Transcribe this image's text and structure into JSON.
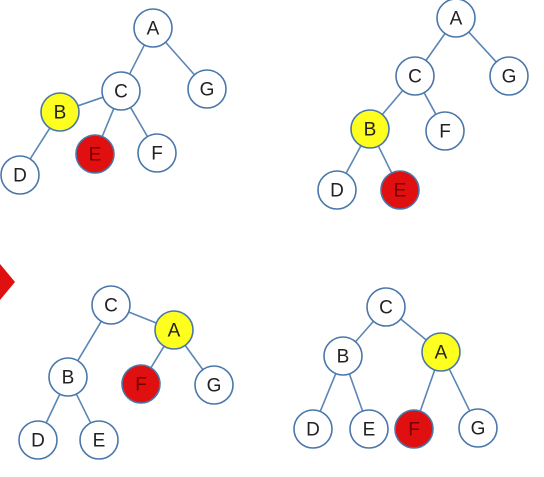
{
  "colors": {
    "default_fill": "#ffffff",
    "yellow_fill": "#ffff1f",
    "red_fill": "#e01010",
    "default_text": "#222222",
    "red_text": "#7a0000",
    "edge": "#5b86b5",
    "arrow": "#e01010"
  },
  "trees": [
    {
      "nodes": [
        {
          "id": "A",
          "label": "A",
          "highlight": "none"
        },
        {
          "id": "C",
          "label": "C",
          "highlight": "none"
        },
        {
          "id": "G",
          "label": "G",
          "highlight": "none"
        },
        {
          "id": "B",
          "label": "B",
          "highlight": "yellow"
        },
        {
          "id": "E",
          "label": "E",
          "highlight": "red"
        },
        {
          "id": "F",
          "label": "F",
          "highlight": "none"
        },
        {
          "id": "D",
          "label": "D",
          "highlight": "none"
        }
      ],
      "edges": [
        [
          "A",
          "C"
        ],
        [
          "A",
          "G"
        ],
        [
          "C",
          "B"
        ],
        [
          "C",
          "E"
        ],
        [
          "C",
          "F"
        ],
        [
          "B",
          "D"
        ]
      ]
    },
    {
      "nodes": [
        {
          "id": "A",
          "label": "A",
          "highlight": "none"
        },
        {
          "id": "C",
          "label": "C",
          "highlight": "none"
        },
        {
          "id": "G",
          "label": "G",
          "highlight": "none"
        },
        {
          "id": "B",
          "label": "B",
          "highlight": "yellow"
        },
        {
          "id": "F",
          "label": "F",
          "highlight": "none"
        },
        {
          "id": "D",
          "label": "D",
          "highlight": "none"
        },
        {
          "id": "E",
          "label": "E",
          "highlight": "red"
        }
      ],
      "edges": [
        [
          "A",
          "C"
        ],
        [
          "A",
          "G"
        ],
        [
          "C",
          "B"
        ],
        [
          "C",
          "F"
        ],
        [
          "B",
          "D"
        ],
        [
          "B",
          "E"
        ]
      ]
    },
    {
      "nodes": [
        {
          "id": "C",
          "label": "C",
          "highlight": "none"
        },
        {
          "id": "A",
          "label": "A",
          "highlight": "yellow"
        },
        {
          "id": "B",
          "label": "B",
          "highlight": "none"
        },
        {
          "id": "F",
          "label": "F",
          "highlight": "red"
        },
        {
          "id": "G",
          "label": "G",
          "highlight": "none"
        },
        {
          "id": "D",
          "label": "D",
          "highlight": "none"
        },
        {
          "id": "E",
          "label": "E",
          "highlight": "none"
        }
      ],
      "edges": [
        [
          "C",
          "A"
        ],
        [
          "C",
          "B"
        ],
        [
          "A",
          "F"
        ],
        [
          "A",
          "G"
        ],
        [
          "B",
          "D"
        ],
        [
          "B",
          "E"
        ]
      ]
    },
    {
      "nodes": [
        {
          "id": "C",
          "label": "C",
          "highlight": "none"
        },
        {
          "id": "B",
          "label": "B",
          "highlight": "none"
        },
        {
          "id": "A",
          "label": "A",
          "highlight": "yellow"
        },
        {
          "id": "D",
          "label": "D",
          "highlight": "none"
        },
        {
          "id": "E",
          "label": "E",
          "highlight": "none"
        },
        {
          "id": "F",
          "label": "F",
          "highlight": "red"
        },
        {
          "id": "G",
          "label": "G",
          "highlight": "none"
        }
      ],
      "edges": [
        [
          "C",
          "B"
        ],
        [
          "C",
          "A"
        ],
        [
          "B",
          "D"
        ],
        [
          "B",
          "E"
        ],
        [
          "A",
          "F"
        ],
        [
          "A",
          "G"
        ]
      ]
    }
  ]
}
